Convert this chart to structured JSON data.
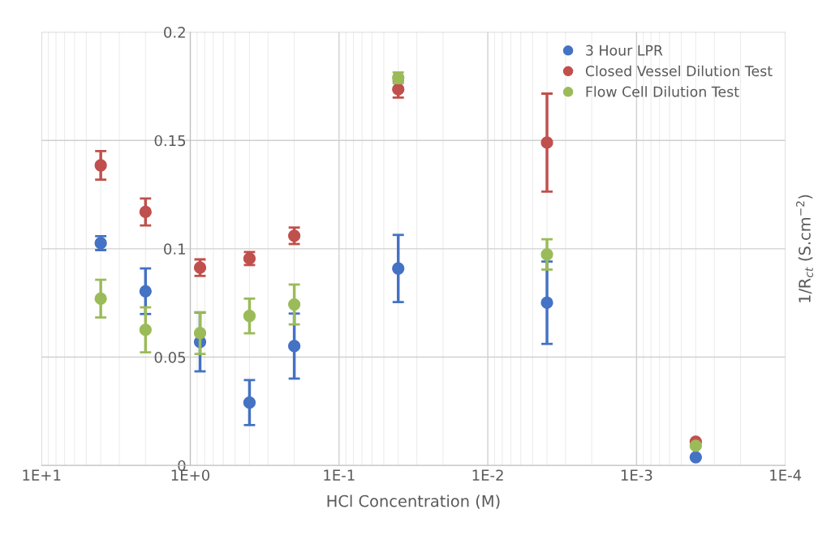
{
  "chart_data": {
    "type": "scatter",
    "xlabel": "HCl Concentration (M)",
    "ylabel": "1/R$_{ct}$ (S.cm$^{−2}$)",
    "x": [
      4,
      2,
      0.86,
      0.4,
      0.2,
      0.04,
      0.004,
      0.0004
    ],
    "series": [
      {
        "name": "3 Hour LPR",
        "color": "#4472c4",
        "values": [
          0.1026,
          0.0804,
          0.057,
          0.029,
          0.0551,
          0.0909,
          0.0751,
          0.0038
        ],
        "errors": [
          0.0032,
          0.0105,
          0.0136,
          0.0104,
          0.015,
          0.0155,
          0.019,
          null
        ]
      },
      {
        "name": "Closed Vessel Dilution Test",
        "color": "#c0504d",
        "values": [
          0.1385,
          0.117,
          0.0913,
          0.0955,
          0.106,
          0.1736,
          0.149,
          0.011
        ],
        "errors": [
          0.0066,
          0.0062,
          0.0038,
          0.003,
          0.0038,
          0.0038,
          0.0226,
          null
        ]
      },
      {
        "name": "Flow Cell Dilution Test",
        "color": "#9bbb59",
        "values": [
          0.077,
          0.0626,
          0.0611,
          0.069,
          0.0743,
          0.1789,
          0.0974,
          0.0091
        ],
        "errors": [
          0.0087,
          0.0104,
          0.0096,
          0.008,
          0.0092,
          0.0025,
          0.007,
          null
        ]
      }
    ],
    "log": "x",
    "xlim": [
      10,
      0.0001
    ],
    "xticks": [
      {
        "value": 10,
        "label": "1E+1"
      },
      {
        "value": 1,
        "label": "1E+0"
      },
      {
        "value": 0.1,
        "label": "1E-1"
      },
      {
        "value": 0.01,
        "label": "1E-2"
      },
      {
        "value": 0.001,
        "label": "1E-3"
      },
      {
        "value": 0.0001,
        "label": "1E-4"
      }
    ],
    "ylim": [
      0,
      0.2
    ],
    "yticks": [
      0,
      0.05,
      0.1,
      0.15,
      0.2
    ],
    "grid": true,
    "legend": "top right",
    "marker": "circle"
  }
}
